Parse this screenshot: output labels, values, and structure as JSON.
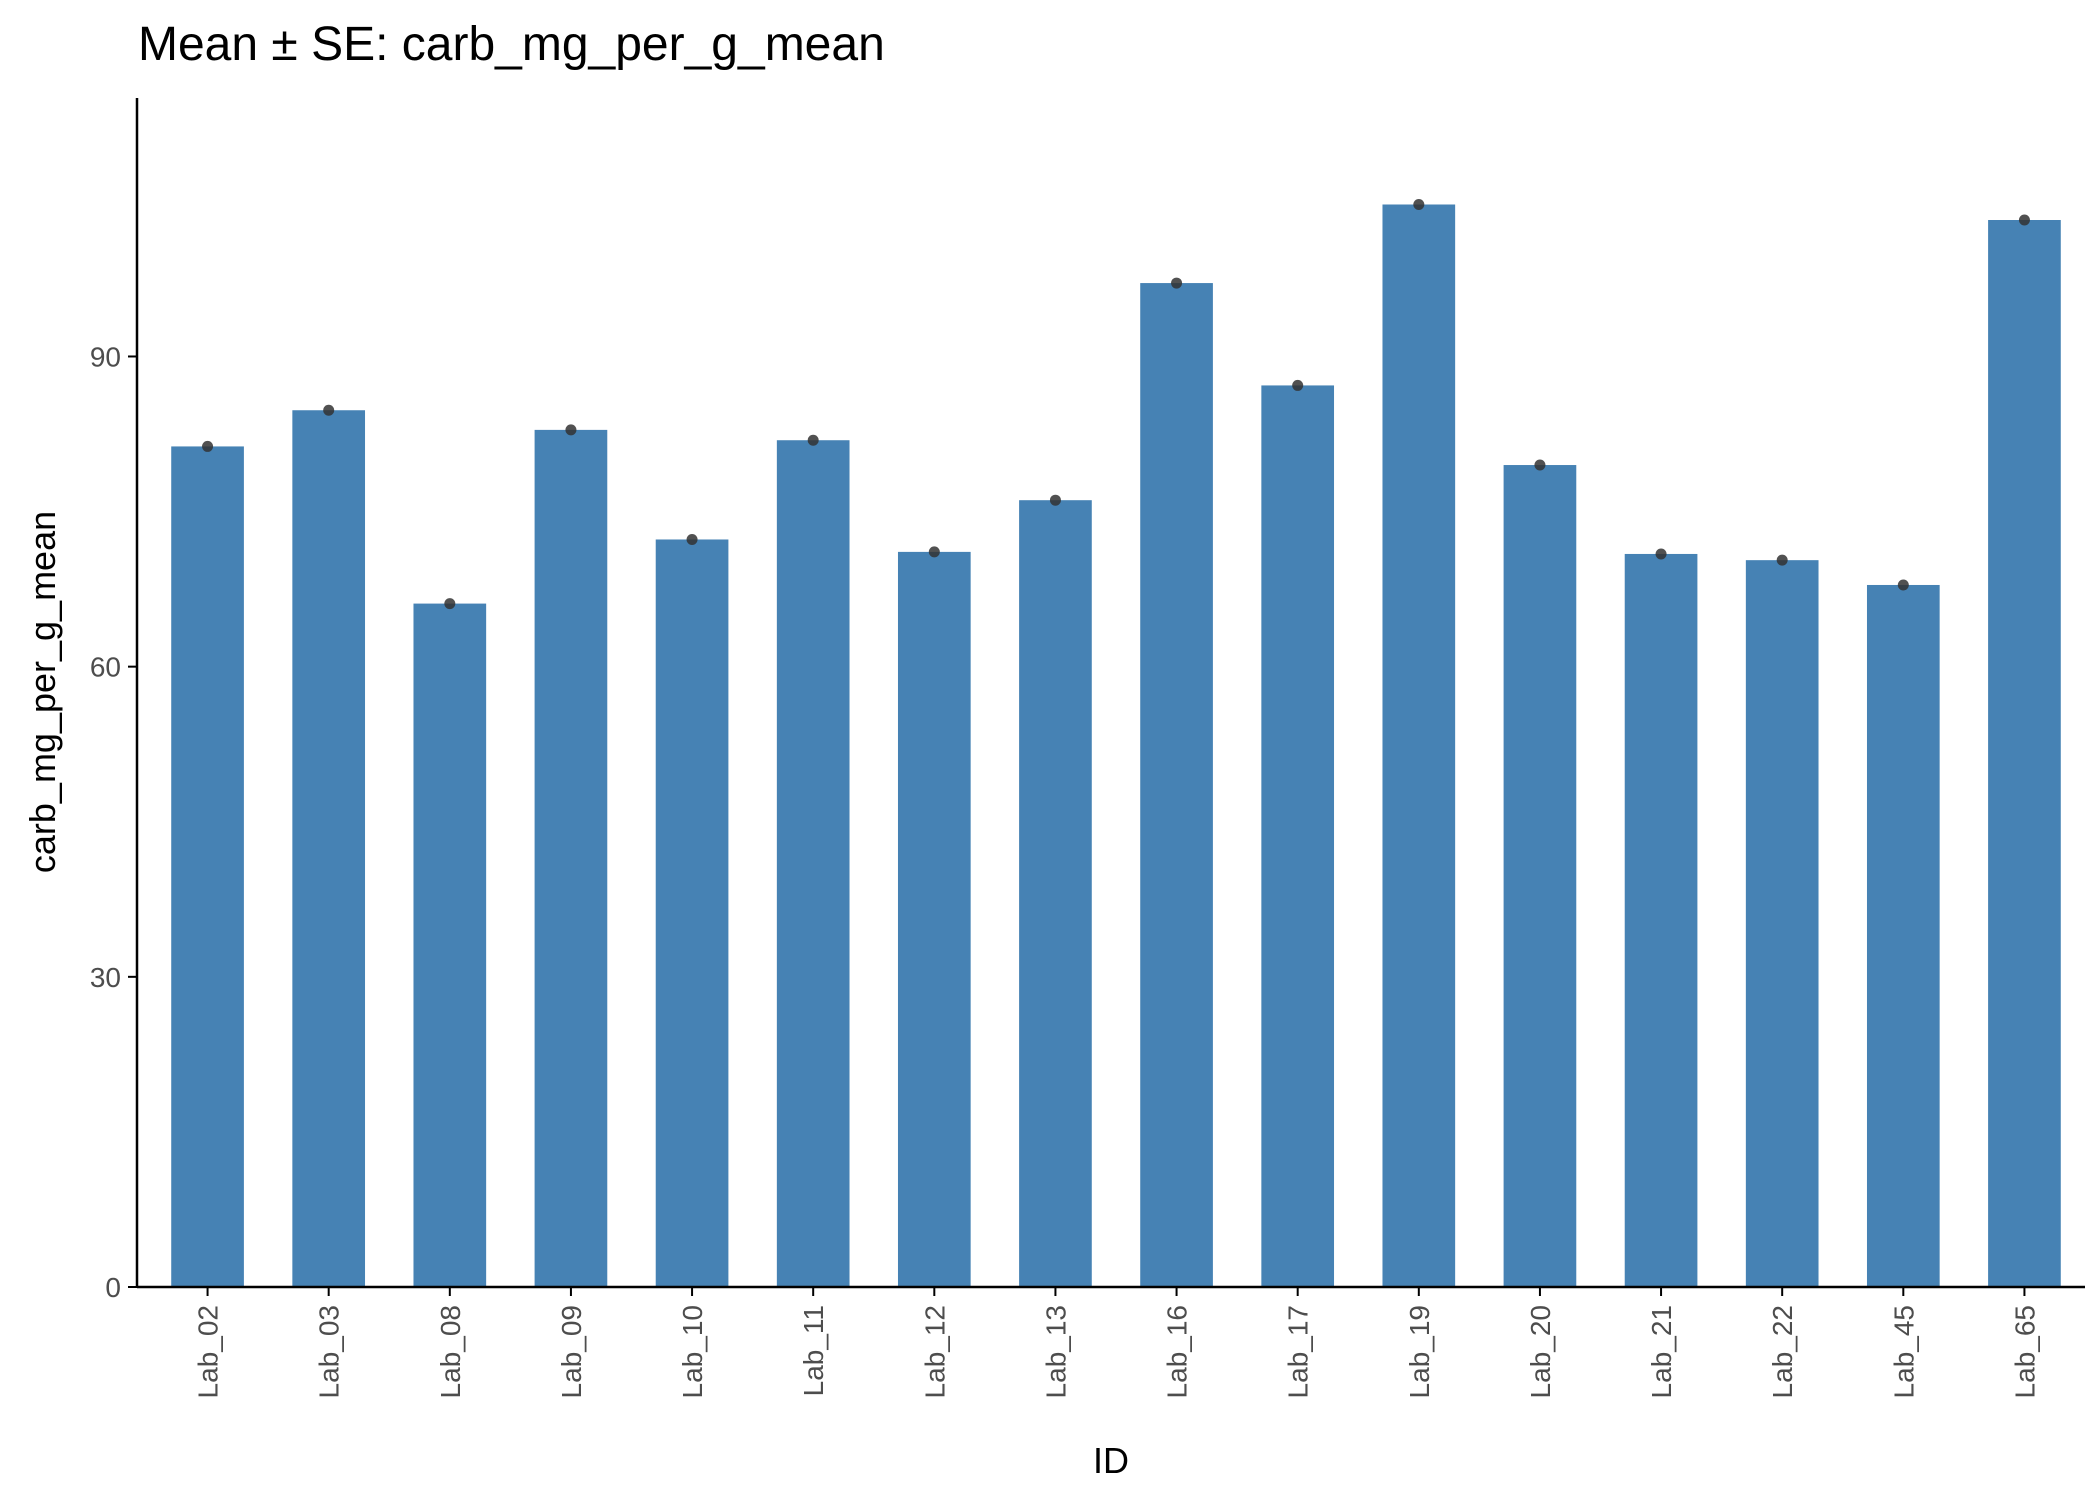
{
  "chart_data": {
    "type": "bar",
    "title": "Mean ± SE: carb_mg_per_g_mean",
    "xlabel": "ID",
    "ylabel": "carb_mg_per_g_mean",
    "categories": [
      "Lab_02",
      "Lab_03",
      "Lab_08",
      "Lab_09",
      "Lab_10",
      "Lab_11",
      "Lab_12",
      "Lab_13",
      "Lab_16",
      "Lab_17",
      "Lab_19",
      "Lab_20",
      "Lab_21",
      "Lab_22",
      "Lab_45",
      "Lab_65"
    ],
    "values": [
      81.3,
      84.8,
      66.1,
      82.9,
      72.3,
      81.9,
      71.1,
      76.1,
      97.1,
      87.2,
      104.7,
      79.5,
      70.9,
      70.3,
      67.9,
      103.2
    ],
    "ylim": [
      0,
      115
    ],
    "yticks": [
      0,
      30,
      60,
      90
    ],
    "bar_color": "#4682B4",
    "point_color": "#333333",
    "grid": false,
    "legend": "none"
  }
}
